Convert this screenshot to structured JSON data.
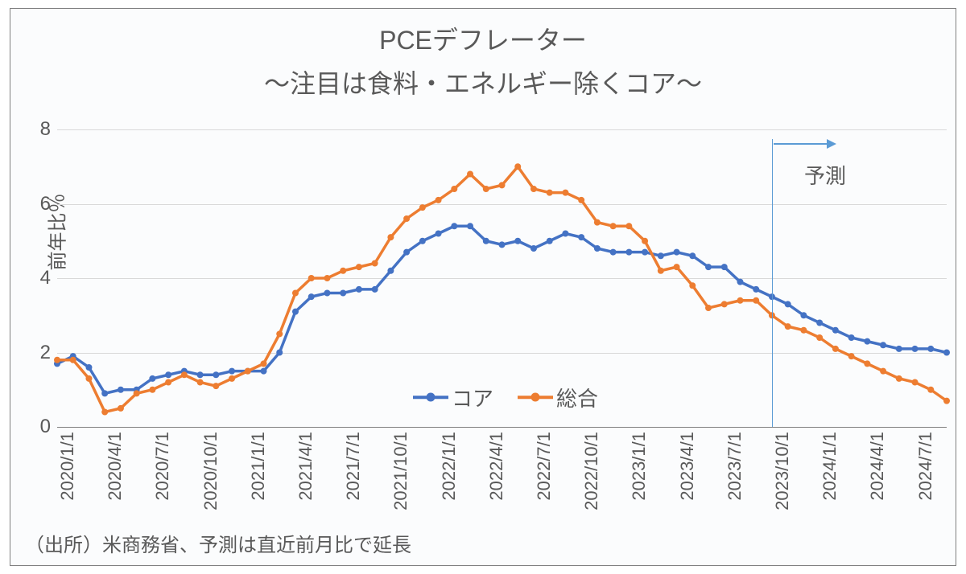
{
  "chart": {
    "title_line1": "PCEデフレーター",
    "title_line2": "～注目は食料・エネルギー除くコア～",
    "ylabel": "前年比％",
    "ylim": [
      0,
      8
    ],
    "ytick_step": 2,
    "yticks": [
      0,
      2,
      4,
      6,
      8
    ],
    "background_color": "#fbfcfd",
    "border_color": "#808080",
    "grid_color": "#d9d9d9",
    "text_color": "#595959",
    "title_fontsize": 32,
    "label_fontsize": 24,
    "tick_fontsize": 22,
    "legend_fontsize": 26,
    "type": "line",
    "line_width": 3.5,
    "marker_size": 8,
    "xlabels": [
      "2020/1/1",
      "2020/4/1",
      "2020/7/1",
      "2020/10/1",
      "2021/1/1",
      "2021/4/1",
      "2021/7/1",
      "2021/10/1",
      "2022/1/1",
      "2022/4/1",
      "2022/7/1",
      "2022/10/1",
      "2023/1/1",
      "2023/4/1",
      "2023/7/1",
      "2023/10/1",
      "2024/1/1",
      "2024/4/1",
      "2024/7/1"
    ],
    "dates": [
      "2020/1/1",
      "2020/2/1",
      "2020/3/1",
      "2020/4/1",
      "2020/5/1",
      "2020/6/1",
      "2020/7/1",
      "2020/8/1",
      "2020/9/1",
      "2020/10/1",
      "2020/11/1",
      "2020/12/1",
      "2021/1/1",
      "2021/2/1",
      "2021/3/1",
      "2021/4/1",
      "2021/5/1",
      "2021/6/1",
      "2021/7/1",
      "2021/8/1",
      "2021/9/1",
      "2021/10/1",
      "2021/11/1",
      "2021/12/1",
      "2022/1/1",
      "2022/2/1",
      "2022/3/1",
      "2022/4/1",
      "2022/5/1",
      "2022/6/1",
      "2022/7/1",
      "2022/8/1",
      "2022/9/1",
      "2022/10/1",
      "2022/11/1",
      "2022/12/1",
      "2023/1/1",
      "2023/2/1",
      "2023/3/1",
      "2023/4/1",
      "2023/5/1",
      "2023/6/1",
      "2023/7/1",
      "2023/8/1",
      "2023/9/1",
      "2023/10/1",
      "2023/11/1",
      "2023/12/1",
      "2024/1/1",
      "2024/2/1",
      "2024/3/1",
      "2024/4/1",
      "2024/5/1",
      "2024/6/1",
      "2024/7/1",
      "2024/8/1",
      "2024/9/1"
    ],
    "series": [
      {
        "name": "コア",
        "color": "#4472c4",
        "values": [
          1.7,
          1.9,
          1.6,
          0.9,
          1.0,
          1.0,
          1.3,
          1.4,
          1.5,
          1.4,
          1.4,
          1.5,
          1.5,
          1.5,
          2.0,
          3.1,
          3.5,
          3.6,
          3.6,
          3.7,
          3.7,
          4.2,
          4.7,
          5.0,
          5.2,
          5.4,
          5.4,
          5.0,
          4.9,
          5.0,
          4.8,
          5.0,
          5.2,
          5.1,
          4.8,
          4.7,
          4.7,
          4.7,
          4.6,
          4.7,
          4.6,
          4.3,
          4.3,
          3.9,
          3.7,
          3.5,
          3.3,
          3.0,
          2.8,
          2.6,
          2.4,
          2.3,
          2.2,
          2.1,
          2.1,
          2.1,
          2.0
        ]
      },
      {
        "name": "総合",
        "color": "#ed7d31",
        "values": [
          1.8,
          1.8,
          1.3,
          0.4,
          0.5,
          0.9,
          1.0,
          1.2,
          1.4,
          1.2,
          1.1,
          1.3,
          1.5,
          1.7,
          2.5,
          3.6,
          4.0,
          4.0,
          4.2,
          4.3,
          4.4,
          5.1,
          5.6,
          5.9,
          6.1,
          6.4,
          6.8,
          6.4,
          6.5,
          7.0,
          6.4,
          6.3,
          6.3,
          6.1,
          5.5,
          5.4,
          5.4,
          5.0,
          4.2,
          4.3,
          3.8,
          3.2,
          3.3,
          3.4,
          3.4,
          3.0,
          2.7,
          2.6,
          2.4,
          2.1,
          1.9,
          1.7,
          1.5,
          1.3,
          1.2,
          1.0,
          0.7
        ]
      }
    ],
    "legend": {
      "items": [
        {
          "label": "コア",
          "color": "#4472c4"
        },
        {
          "label": "総合",
          "color": "#ed7d31"
        }
      ]
    },
    "forecast": {
      "label": "予測",
      "x_index": 45,
      "line_color": "#5b9bd5",
      "arrow_color": "#5b9bd5"
    },
    "source": "（出所）米商務省、予測は直近前月比で延長"
  }
}
